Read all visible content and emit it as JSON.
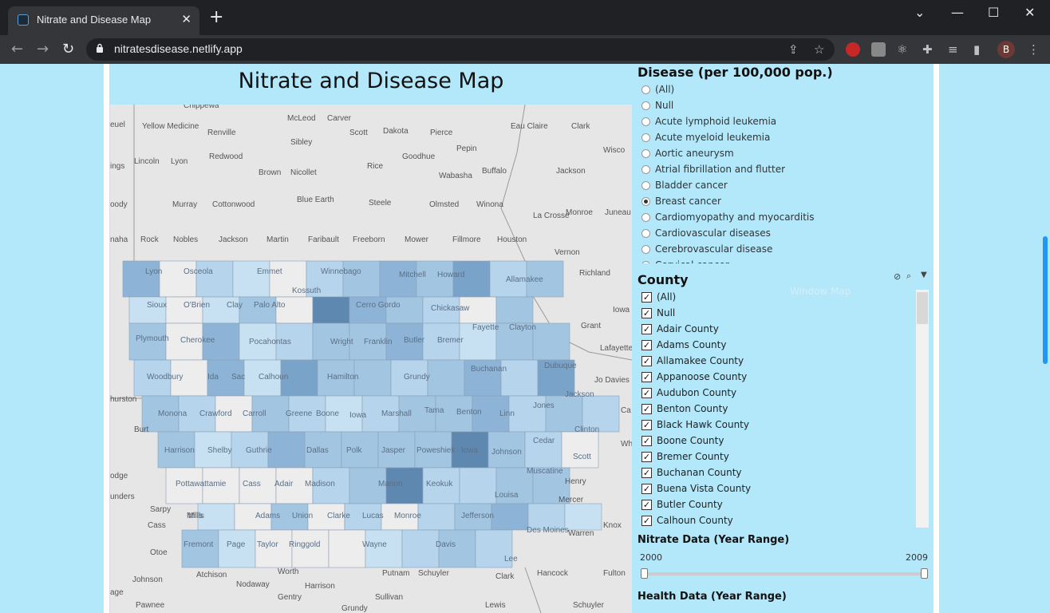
{
  "browser": {
    "tab_title": "Nitrate and Disease Map",
    "new_tab": "+",
    "url": "nitratesdisease.netlify.app",
    "profile_initial": "B",
    "window_controls": {
      "chevron": "⌄",
      "minimize": "—",
      "maximize": "☐",
      "close": "✕"
    }
  },
  "map": {
    "title": "Nitrate and Disease Map",
    "place_labels": [
      "Chippewa",
      "Yellow Medicine",
      "Renville",
      "McLeod",
      "Carver",
      "Scott",
      "Dakota",
      "Pierce",
      "Eau Claire",
      "Clark",
      "euel",
      "Sibley",
      "Pepin",
      "Wisco",
      "ings",
      "Lincoln",
      "Lyon",
      "Redwood",
      "Brown",
      "Nicollet",
      "Rice",
      "Goodhue",
      "Buffalo",
      "Jackson",
      "Wabasha",
      "Blue Earth",
      "Steele",
      "Olmsted",
      "Winona",
      "La Crosse",
      "Monroe",
      "Juneau",
      "oody",
      "Murray",
      "Cottonwood",
      "naha",
      "Rock",
      "Nobles",
      "Jackson",
      "Martin",
      "Faribault",
      "Freeborn",
      "Mower",
      "Fillmore",
      "Houston",
      "Vernon",
      "Richland",
      "Iowa",
      "Grant",
      "Lafayette",
      "Jo Davies",
      "Ca",
      "hurston",
      "Burt",
      "Whit",
      "odge",
      "Henry",
      "Mercer",
      "unders",
      "Sarpy",
      "Cass",
      "Mills",
      "Otoe",
      "Warren",
      "Knox",
      "Johnson",
      "Atchison",
      "Nodaway",
      "Worth",
      "Harrison",
      "Putnam",
      "Schuyler",
      "Clark",
      "Hancock",
      "Fulton",
      "age",
      "Pawnee",
      "Gentry",
      "Sullivan",
      "Grundy",
      "Lewis",
      "Schuyler"
    ],
    "county_labels": [
      "Lyon",
      "Osceola",
      "Emmet",
      "Winnebago",
      "Mitchell",
      "Howard",
      "Allamakee",
      "Sioux",
      "O'Brien",
      "Clay",
      "Palo Alto",
      "Kossuth",
      "Cerro Gordo",
      "Chickasaw",
      "Fayette",
      "Clayton",
      "Plymouth",
      "Cherokee",
      "Pocahontas",
      "Wright",
      "Franklin",
      "Butler",
      "Bremer",
      "Buchanan",
      "Dubuque",
      "Woodbury",
      "Ida",
      "Sac",
      "Calhoun",
      "Hamilton",
      "Grundy",
      "Jackson",
      "Monona",
      "Crawford",
      "Carroll",
      "Greene",
      "Boone",
      "Iowa",
      "Marshall",
      "Tama",
      "Benton",
      "Linn",
      "Jones",
      "Clinton",
      "Harrison",
      "Shelby",
      "Guthrie",
      "Dallas",
      "Polk",
      "Jasper",
      "Poweshiek",
      "Iowa",
      "Johnson",
      "Cedar",
      "Scott",
      "Muscatine",
      "Pottawattamie",
      "Cass",
      "Adair",
      "Madison",
      "Marion",
      "Keokuk",
      "Louisa",
      "Mills",
      "Adams",
      "Union",
      "Clarke",
      "Lucas",
      "Monroe",
      "Jefferson",
      "Des Moines",
      "Fremont",
      "Page",
      "Taylor",
      "Ringgold",
      "Wayne",
      "Davis",
      "Lee"
    ]
  },
  "disease_filter": {
    "title": "Disease (per 100,000 pop.)",
    "options": [
      "(All)",
      "Null",
      "Acute lymphoid leukemia",
      "Acute myeloid leukemia",
      "Aortic aneurysm",
      "Atrial fibrillation and flutter",
      "Bladder cancer",
      "Breast cancer",
      "Cardiomyopathy and myocarditis",
      "Cardiovascular diseases",
      "Cerebrovascular disease",
      "Cervical cancer"
    ],
    "selected": "Breast cancer"
  },
  "county_filter": {
    "title": "County",
    "options": [
      "(All)",
      "Null",
      "Adair County",
      "Adams County",
      "Allamakee County",
      "Appanoose County",
      "Audubon County",
      "Benton County",
      "Black Hawk County",
      "Boone County",
      "Bremer County",
      "Buchanan County",
      "Buena Vista County",
      "Butler County",
      "Calhoun County"
    ],
    "check_mark": "✓",
    "faded_tooltip": "Window Map"
  },
  "nitrate_range": {
    "title": "Nitrate Data (Year Range)",
    "min_label": "2000",
    "max_label": "2009",
    "low": 2000,
    "high": 2009
  },
  "health_range": {
    "title": "Health Data (Year Range)"
  },
  "colors": {
    "page_bg": "#b3e8fb",
    "choropleth_dark": "#4a6f96",
    "choropleth_light": "#c8e1f2",
    "no_data": "#ededed"
  }
}
